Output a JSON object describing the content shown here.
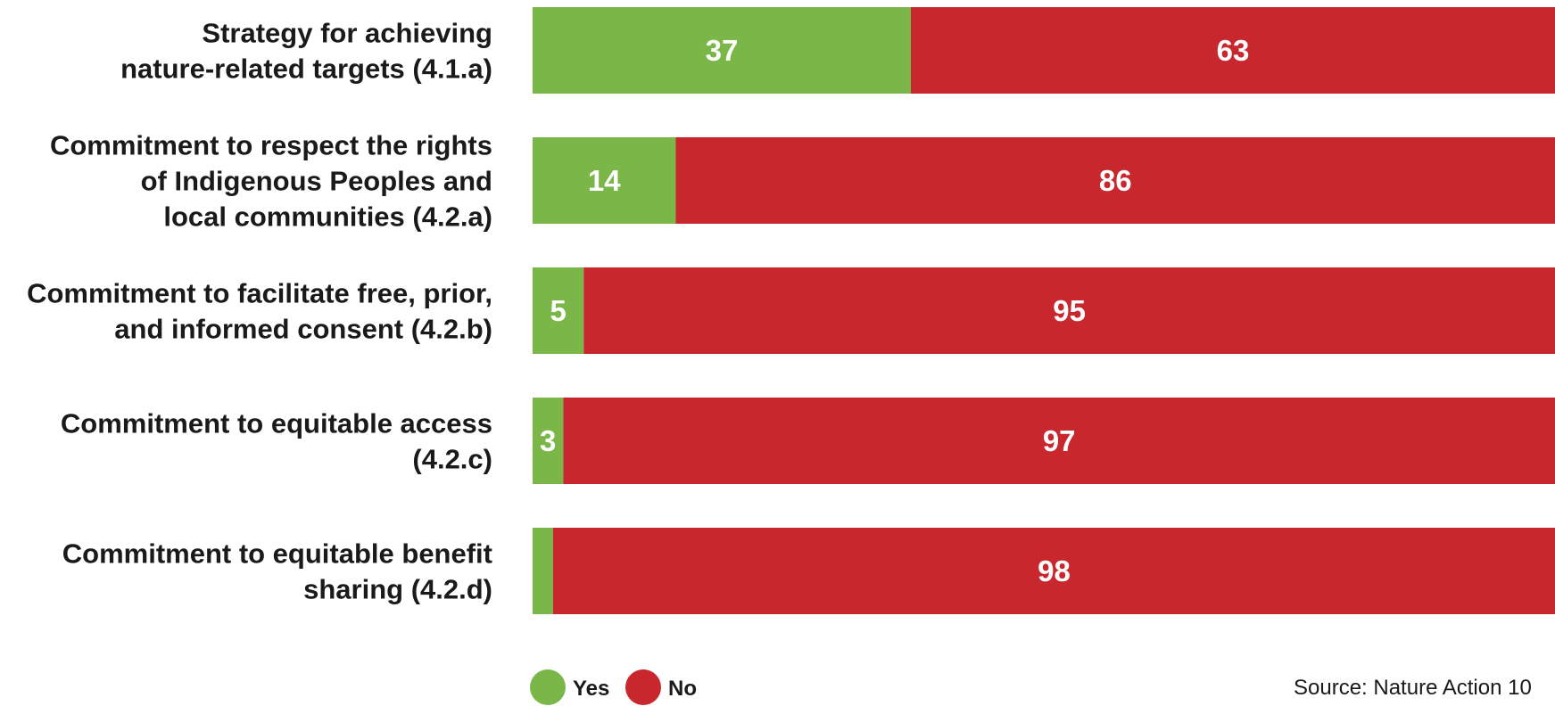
{
  "chart_data": {
    "type": "bar",
    "orientation": "horizontal",
    "stacked": true,
    "categories": [
      [
        "Strategy for achieving",
        "nature-related targets (4.1.a)"
      ],
      [
        "Commitment to respect the rights",
        "of Indigenous Peoples and",
        "local communities (4.2.a)"
      ],
      [
        "Commitment to facilitate free, prior,",
        "and informed consent (4.2.b)"
      ],
      [
        "Commitment to equitable access",
        "(4.2.c)"
      ],
      [
        "Commitment to equitable benefit",
        "sharing (4.2.d)"
      ]
    ],
    "series": [
      {
        "name": "Yes",
        "color": "#7ab648",
        "values": [
          37,
          14,
          5,
          3,
          2
        ]
      },
      {
        "name": "No",
        "color": "#c8272d",
        "values": [
          63,
          86,
          95,
          97,
          98
        ]
      }
    ],
    "xlim": [
      0,
      100
    ],
    "grid": false,
    "legend": "bottom-left",
    "source": "Source: Nature Action 10"
  }
}
